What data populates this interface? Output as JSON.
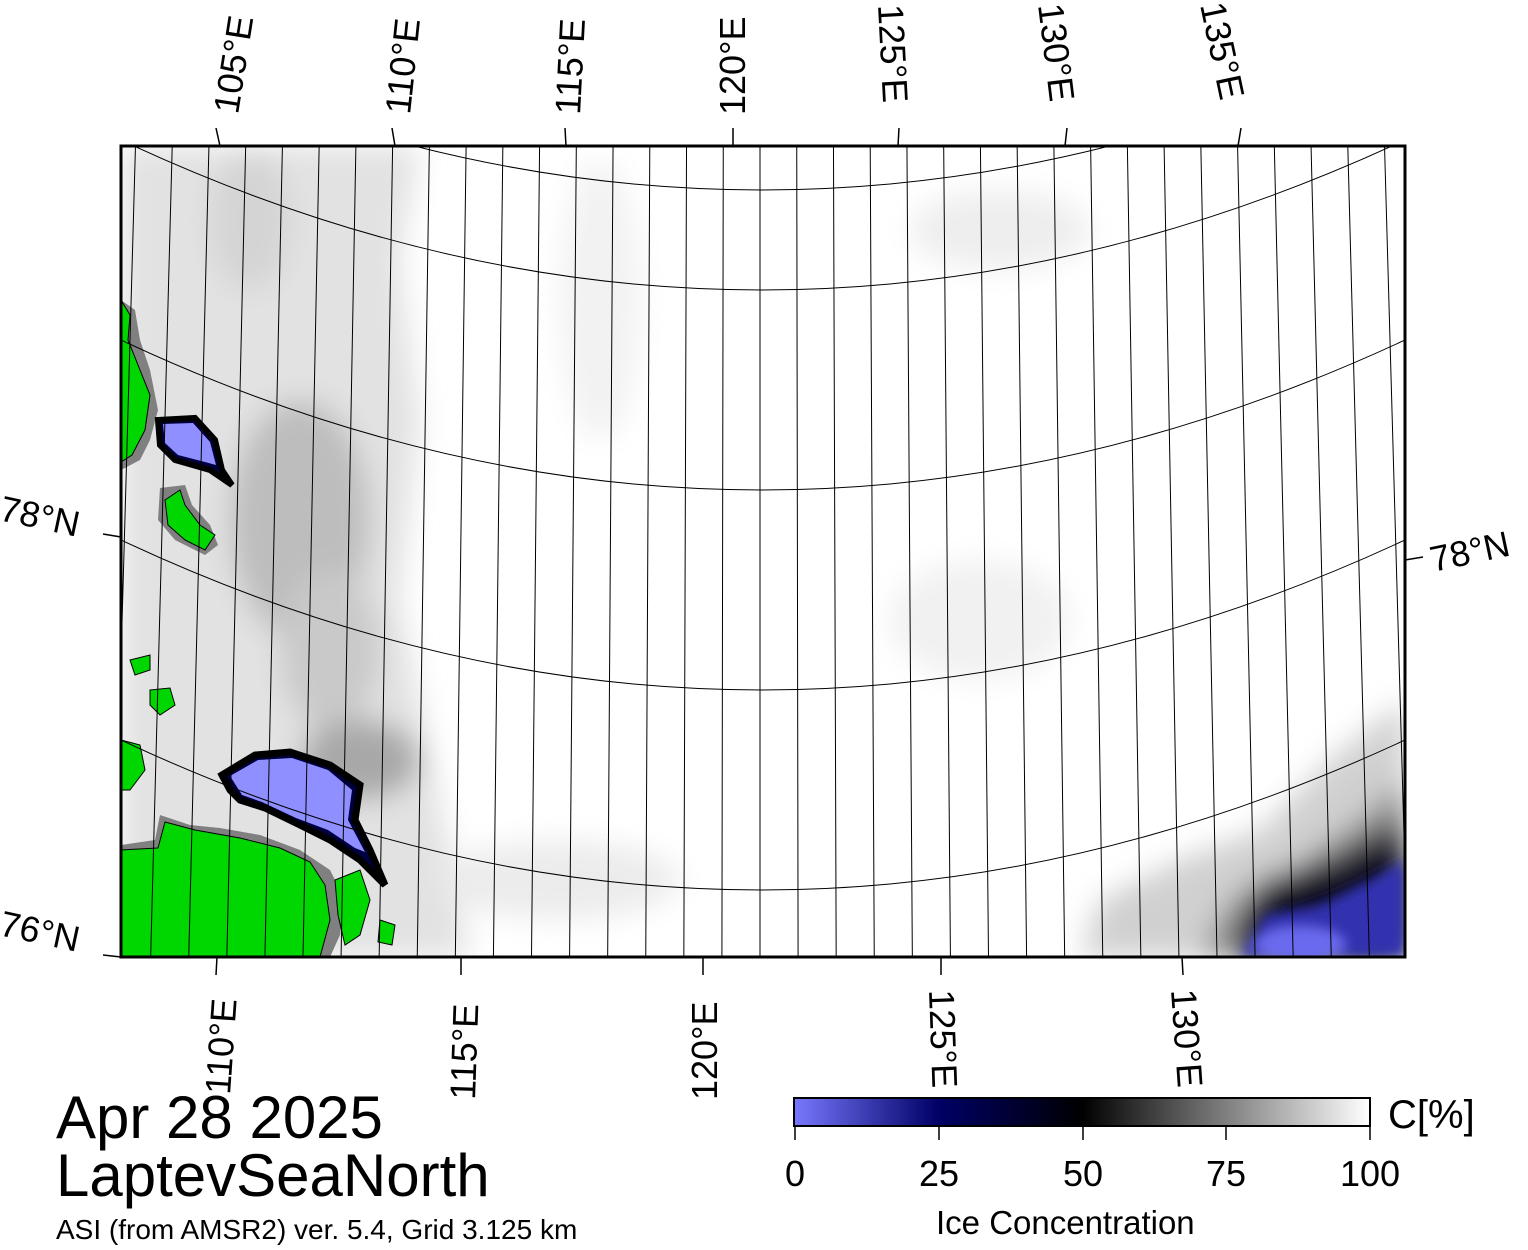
{
  "header": {
    "date": "Apr 28 2025",
    "region": "LaptevSeaNorth",
    "product": "ASI (from AMSR2) ver. 5.4,  Grid 3.125 km"
  },
  "map": {
    "top_lon_labels": [
      "105°E",
      "110°E",
      "115°E",
      "120°E",
      "125°E",
      "130°E",
      "135°E"
    ],
    "bottom_lon_labels": [
      "110°E",
      "115°E",
      "120°E",
      "125°E",
      "130°E"
    ],
    "left_lat_labels": [
      "78°N",
      "76°N"
    ],
    "right_lat_labels": [
      "78°N"
    ],
    "colors": {
      "land": "#00d700",
      "coast_mask": "#808080",
      "open_water": "#7878ff"
    }
  },
  "colorbar": {
    "title": "Ice Concentration",
    "unit": "C[%]",
    "ticks": [
      "0",
      "25",
      "50",
      "75",
      "100"
    ],
    "stops": [
      "#7878ff",
      "#000066",
      "#000000",
      "#ffffff"
    ]
  }
}
